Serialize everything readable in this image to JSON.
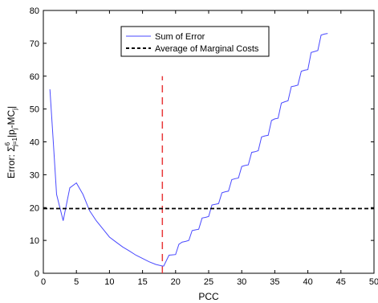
{
  "chart_data": {
    "type": "line",
    "xlabel": "PCC",
    "ylabel": "Error: Σ",
    "ylabel_sup": "6",
    "ylabel_sub": "j=1",
    "ylabel_rest": "|p",
    "ylabel_sub2": "j",
    "ylabel_tail": "-MC",
    "ylabel_sub3": "j",
    "ylabel_end": "|",
    "xlim": [
      0,
      50
    ],
    "ylim": [
      0,
      80
    ],
    "xticks": [
      0,
      5,
      10,
      15,
      20,
      25,
      30,
      35,
      40,
      45,
      50
    ],
    "yticks": [
      0,
      10,
      20,
      30,
      40,
      50,
      60,
      70,
      80
    ],
    "grid": false,
    "legend_position": "top-center",
    "series": [
      {
        "name": "Sum of Error",
        "color": "#4a4aff",
        "style": "solid",
        "points": [
          [
            1,
            56
          ],
          [
            1.5,
            40
          ],
          [
            2,
            24
          ],
          [
            3,
            16
          ],
          [
            4,
            26
          ],
          [
            5,
            27.5
          ],
          [
            6,
            24
          ],
          [
            7,
            19
          ],
          [
            8,
            16
          ],
          [
            9,
            13.5
          ],
          [
            10,
            11
          ],
          [
            11,
            9.5
          ],
          [
            12,
            8
          ],
          [
            13,
            6.8
          ],
          [
            14,
            5.5
          ],
          [
            15,
            4.5
          ],
          [
            16,
            3.5
          ],
          [
            17,
            2.7
          ],
          [
            18,
            2.2
          ],
          [
            18.2,
            2.2
          ],
          [
            19,
            5.5
          ],
          [
            19.5,
            5.6
          ],
          [
            20,
            5.7
          ],
          [
            20.5,
            8.8
          ],
          [
            21,
            9.5
          ],
          [
            21.5,
            9.7
          ],
          [
            22,
            10
          ],
          [
            22.5,
            13
          ],
          [
            23,
            13.2
          ],
          [
            23.5,
            13.4
          ],
          [
            24,
            16.8
          ],
          [
            24.5,
            17
          ],
          [
            25,
            17.3
          ],
          [
            25.5,
            20.8
          ],
          [
            26,
            21
          ],
          [
            26.5,
            21.2
          ],
          [
            27,
            24.5
          ],
          [
            27.5,
            24.8
          ],
          [
            28,
            25
          ],
          [
            28.5,
            28.5
          ],
          [
            29,
            28.8
          ],
          [
            29.5,
            29
          ],
          [
            30,
            32.5
          ],
          [
            30.5,
            32.8
          ],
          [
            31,
            33
          ],
          [
            31.5,
            36.8
          ],
          [
            32,
            37
          ],
          [
            32.5,
            37.3
          ],
          [
            33,
            41.5
          ],
          [
            33.5,
            41.8
          ],
          [
            34,
            42
          ],
          [
            34.5,
            46.5
          ],
          [
            35,
            47
          ],
          [
            35.5,
            47.2
          ],
          [
            36,
            51.8
          ],
          [
            36.5,
            52.2
          ],
          [
            37,
            52.5
          ],
          [
            37.5,
            56.8
          ],
          [
            38,
            57
          ],
          [
            38.5,
            57.3
          ],
          [
            39,
            61.5
          ],
          [
            39.5,
            61.8
          ],
          [
            40,
            62
          ],
          [
            40.5,
            67.2
          ],
          [
            41,
            67.5
          ],
          [
            41.5,
            67.8
          ],
          [
            42,
            72.5
          ],
          [
            42.5,
            72.8
          ],
          [
            43,
            73
          ]
        ]
      },
      {
        "name": "Average of Marginal Costs",
        "color": "#000000",
        "style": "dashed",
        "points": [
          [
            0,
            19.7
          ],
          [
            50,
            19.7
          ]
        ]
      }
    ],
    "vertical_marker": {
      "x": 18,
      "y_range": [
        0,
        60
      ],
      "color": "#e8393b",
      "style": "dashed"
    }
  }
}
